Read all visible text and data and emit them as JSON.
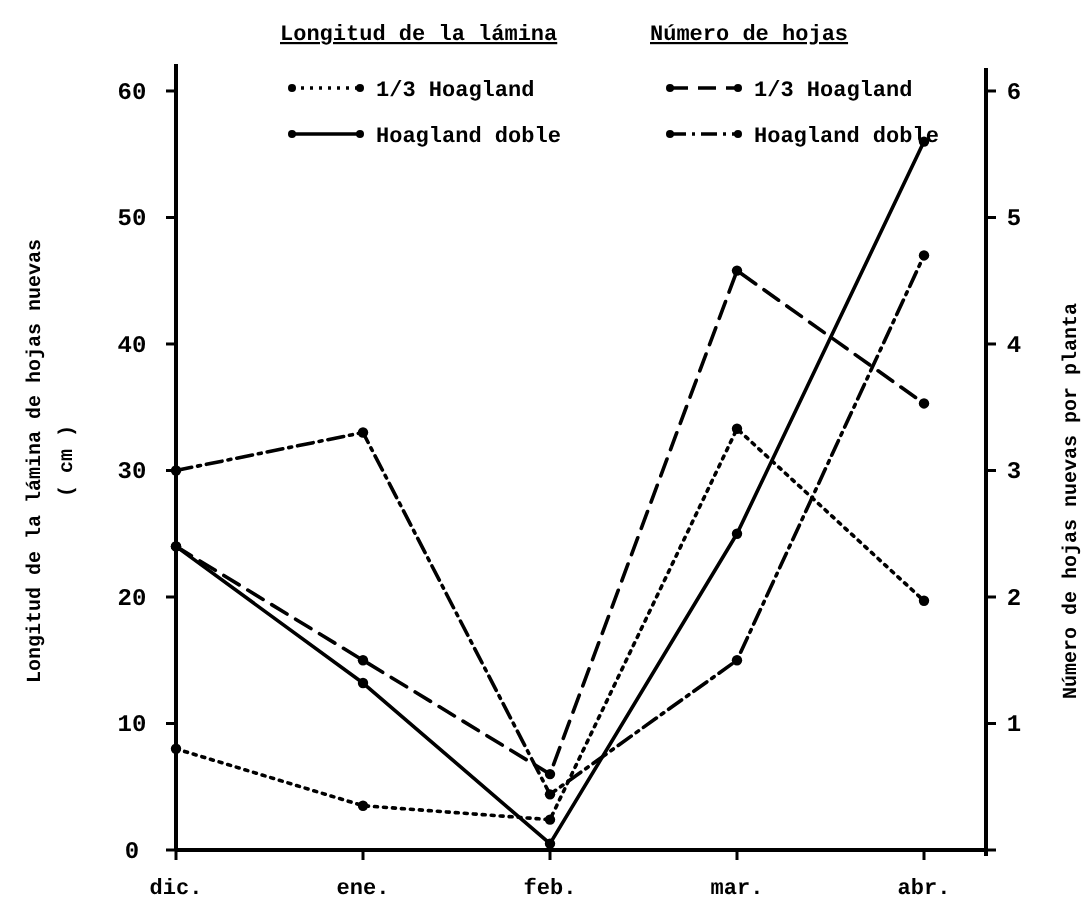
{
  "chart_data": {
    "type": "line",
    "categories": [
      "dic.",
      "ene.",
      "feb.",
      "mar.",
      "abr."
    ],
    "ylabel": "Longitud de la lámina de hojas nuevas\n( cm )",
    "y2label": "Número de hojas nuevas por planta",
    "legend_title": [
      "Longitud de la lámina",
      "Número de hojas"
    ],
    "series": [
      {
        "name": "1/3 Hoagland",
        "color": "#000000",
        "line_style": "dotted",
        "values": [
          8,
          3.5,
          2.4,
          33.3,
          19.7
        ]
      },
      {
        "name": "Hoagland doble",
        "color": "#000000",
        "line_style": "solid",
        "values": [
          24,
          13.2,
          0.5,
          25,
          56
        ]
      },
      {
        "name": "1/3 Hoagland",
        "color": "#000000",
        "line_style": "dashed",
        "axis": "y2",
        "values": [
          2.4,
          1.5,
          0.6,
          4.58,
          3.53
        ]
      },
      {
        "name": "Hoagland doble",
        "color": "#000000",
        "line_style": "dashdot",
        "axis": "y2",
        "values": [
          3.0,
          3.3,
          0.44,
          1.5,
          4.7
        ]
      }
    ],
    "ylim": [
      0,
      61.5
    ],
    "yticks": [
      0,
      10,
      20,
      30,
      40,
      50,
      60
    ],
    "y2lim": [
      0,
      6.15
    ],
    "y2ticks": [
      {
        "value": 0,
        "label": null
      },
      1,
      2,
      3,
      4,
      5,
      6
    ],
    "grid": false,
    "legend": "top",
    "marker": "circle"
  }
}
